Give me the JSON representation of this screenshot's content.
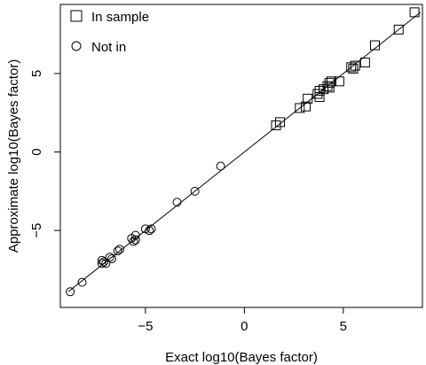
{
  "chart_data": {
    "type": "scatter",
    "xlabel": "Exact log10(Bayes factor)",
    "ylabel": "Approximate log10(Bayes factor)",
    "xlim": [
      -9.3,
      9.0
    ],
    "ylim": [
      -9.9,
      9.4
    ],
    "xticks": [
      -5,
      0,
      5
    ],
    "yticks": [
      -5,
      0,
      5
    ],
    "xtick_labels": [
      "−5",
      "0",
      "5"
    ],
    "ytick_labels": [
      "−5",
      "0",
      "5"
    ],
    "grid": false,
    "legend_position": "top-left",
    "reference_line": {
      "x": [
        -8.9,
        8.9
      ],
      "y": [
        -8.9,
        8.9
      ]
    },
    "series": [
      {
        "name": "In sample",
        "marker": "square",
        "points": [
          {
            "x": 8.6,
            "y": 8.9
          },
          {
            "x": 7.8,
            "y": 7.8
          },
          {
            "x": 6.6,
            "y": 6.8
          },
          {
            "x": 6.1,
            "y": 5.7
          },
          {
            "x": 5.6,
            "y": 5.5
          },
          {
            "x": 5.4,
            "y": 5.4
          },
          {
            "x": 5.5,
            "y": 5.3
          },
          {
            "x": 4.8,
            "y": 4.5
          },
          {
            "x": 4.4,
            "y": 4.5
          },
          {
            "x": 4.3,
            "y": 4.4
          },
          {
            "x": 4.2,
            "y": 4.2
          },
          {
            "x": 4.3,
            "y": 4.1
          },
          {
            "x": 4.0,
            "y": 4.0
          },
          {
            "x": 3.8,
            "y": 3.9
          },
          {
            "x": 3.7,
            "y": 3.7
          },
          {
            "x": 3.8,
            "y": 3.5
          },
          {
            "x": 3.2,
            "y": 3.4
          },
          {
            "x": 3.1,
            "y": 2.9
          },
          {
            "x": 2.8,
            "y": 2.8
          },
          {
            "x": 1.8,
            "y": 1.9
          },
          {
            "x": 1.6,
            "y": 1.7
          }
        ]
      },
      {
        "name": "Not in",
        "marker": "circle",
        "points": [
          {
            "x": -1.2,
            "y": -0.9
          },
          {
            "x": -2.5,
            "y": -2.5
          },
          {
            "x": -3.4,
            "y": -3.2
          },
          {
            "x": -4.7,
            "y": -4.9
          },
          {
            "x": -4.8,
            "y": -5.0
          },
          {
            "x": -5.0,
            "y": -4.9
          },
          {
            "x": -5.5,
            "y": -5.3
          },
          {
            "x": -5.5,
            "y": -5.6
          },
          {
            "x": -5.6,
            "y": -5.7
          },
          {
            "x": -5.7,
            "y": -5.5
          },
          {
            "x": -6.3,
            "y": -6.2
          },
          {
            "x": -6.4,
            "y": -6.3
          },
          {
            "x": -6.7,
            "y": -6.8
          },
          {
            "x": -6.8,
            "y": -6.7
          },
          {
            "x": -7.0,
            "y": -7.1
          },
          {
            "x": -7.1,
            "y": -7.0
          },
          {
            "x": -7.2,
            "y": -7.1
          },
          {
            "x": -7.2,
            "y": -6.9
          },
          {
            "x": -8.2,
            "y": -8.3
          },
          {
            "x": -8.8,
            "y": -8.9
          }
        ]
      }
    ]
  }
}
